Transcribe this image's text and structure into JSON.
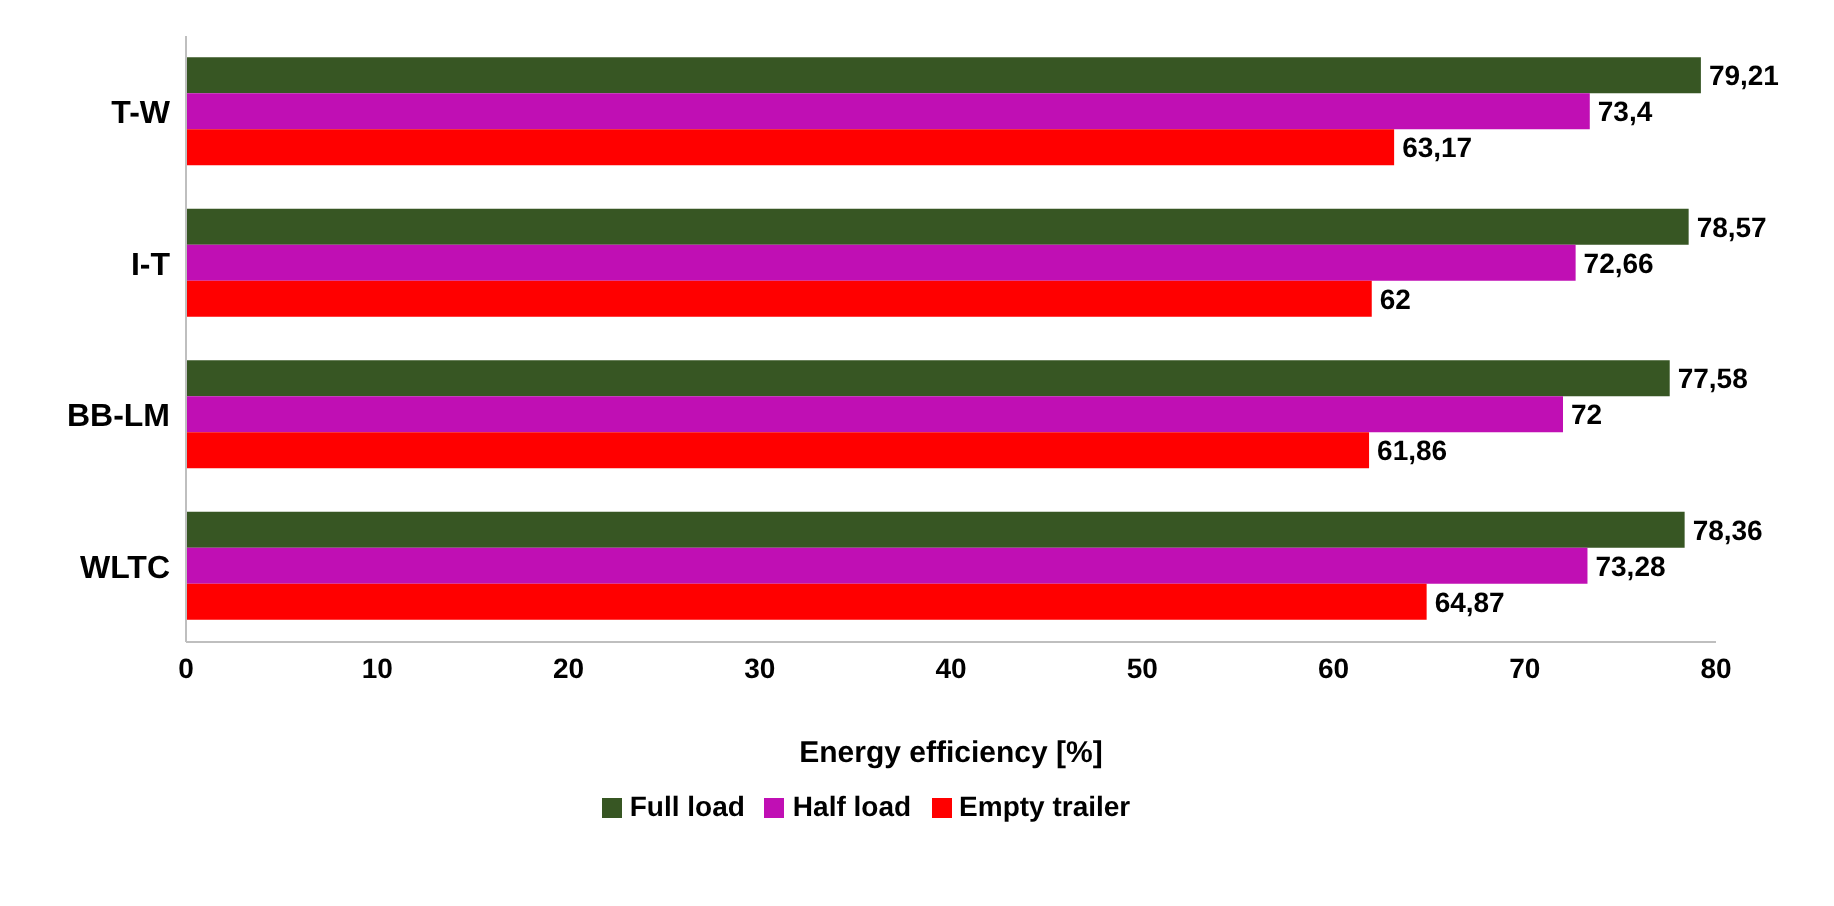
{
  "chart_data": {
    "type": "bar",
    "orientation": "horizontal",
    "xlabel": "Energy efficiency [%]",
    "categories": [
      "T-W",
      "I-T",
      "BB-LM",
      "WLTC"
    ],
    "series": [
      {
        "name": "Full load",
        "color": "#375623",
        "values": [
          79.21,
          78.57,
          77.58,
          78.36
        ],
        "value_labels": [
          "79,21",
          "78,57",
          "77,58",
          "78,36"
        ]
      },
      {
        "name": "Half load",
        "color": "#c00fb4",
        "values": [
          73.4,
          72.66,
          72,
          73.28
        ],
        "value_labels": [
          "73,4",
          "72,66",
          "72",
          "73,28"
        ]
      },
      {
        "name": "Empty trailer",
        "color": "#ff0000",
        "values": [
          63.17,
          62,
          61.86,
          64.87
        ],
        "value_labels": [
          "63,17",
          "62",
          "61,86",
          "64,87"
        ]
      }
    ],
    "xlim": [
      0,
      80
    ],
    "xticks": [
      0,
      10,
      20,
      30,
      40,
      50,
      60,
      70,
      80
    ],
    "grid": false,
    "legend": "bottom"
  }
}
